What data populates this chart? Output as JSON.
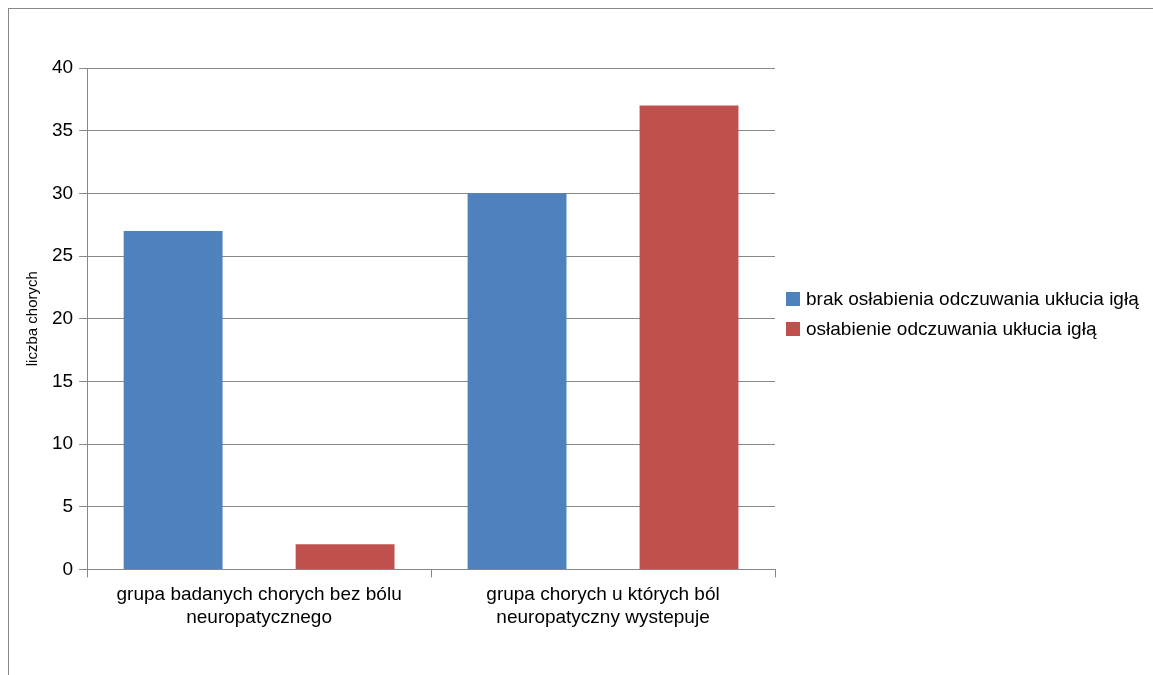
{
  "chart_data": {
    "type": "bar",
    "ylabel": "liczba chorych",
    "categories": [
      "grupa badanych chorych bez bólu neuropatycznego",
      "grupa chorych u których ból neuropatyczny wystepuje"
    ],
    "series": [
      {
        "name": "brak osłabienia odczuwania ukłucia igłą",
        "color": "#4f81bd",
        "values": [
          27,
          30
        ]
      },
      {
        "name": "osłabienie odczuwania ukłucia igłą",
        "color": "#c0504d",
        "values": [
          2,
          37
        ]
      }
    ],
    "ylim": [
      0,
      40
    ],
    "yticks": [
      0,
      5,
      10,
      15,
      20,
      25,
      30,
      35,
      40
    ],
    "grid": "y",
    "legend": "right"
  }
}
